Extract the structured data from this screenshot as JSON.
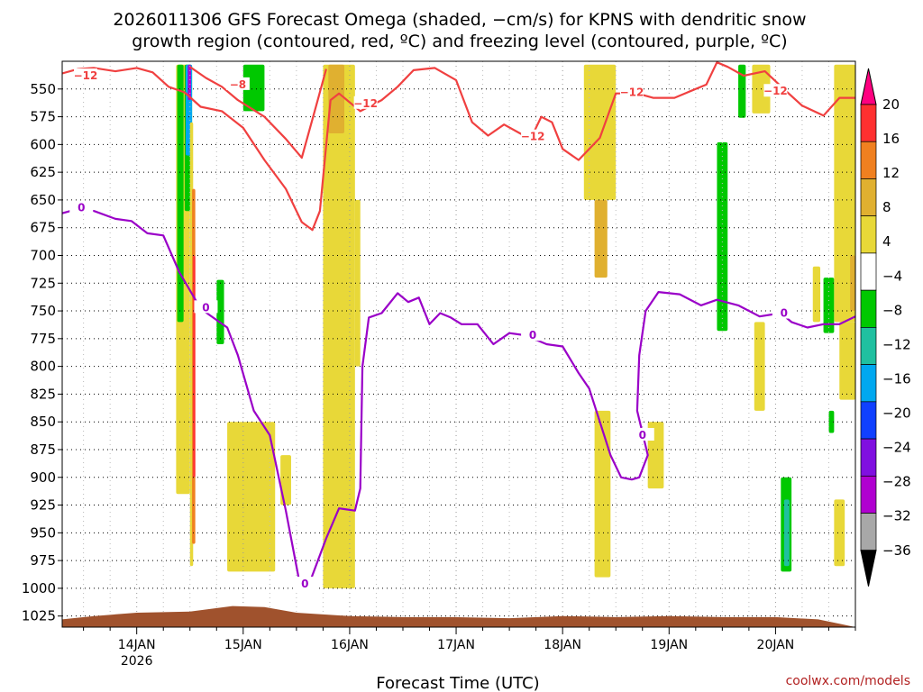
{
  "chart_data": {
    "type": "heatmap",
    "title_lines": [
      "2026011306 GFS Forecast Omega (shaded, −cm/s) for KPNS with dendritic snow",
      "growth region (contoured, red, ºC) and freezing level (contoured, purple, ºC)"
    ],
    "xlabel": "Forecast Time (UTC)",
    "credit": "coolwx.com/models",
    "y_unit": "hPa",
    "ylim": [
      1035,
      525
    ],
    "y_ticks": [
      "550",
      "575",
      "600",
      "625",
      "650",
      "675",
      "700",
      "725",
      "750",
      "775",
      "800",
      "825",
      "850",
      "875",
      "900",
      "925",
      "950",
      "975",
      "1000",
      "1025"
    ],
    "y_tick_values": [
      550,
      575,
      600,
      625,
      650,
      675,
      700,
      725,
      750,
      775,
      800,
      825,
      850,
      875,
      900,
      925,
      950,
      975,
      1000,
      1025
    ],
    "x_day_range": [
      13.3,
      20.75
    ],
    "x_ticks": [
      {
        "day": 14,
        "label": "14JAN",
        "sub": "2026"
      },
      {
        "day": 15,
        "label": "15JAN",
        "sub": ""
      },
      {
        "day": 16,
        "label": "16JAN",
        "sub": ""
      },
      {
        "day": 17,
        "label": "17JAN",
        "sub": ""
      },
      {
        "day": 18,
        "label": "18JAN",
        "sub": ""
      },
      {
        "day": 19,
        "label": "19JAN",
        "sub": ""
      },
      {
        "day": 20,
        "label": "20JAN",
        "sub": ""
      }
    ],
    "colorbar": {
      "levels": [
        "20",
        "16",
        "12",
        "8",
        "4",
        "−4",
        "−8",
        "−12",
        "−16",
        "−20",
        "−24",
        "−28",
        "−32",
        "−36"
      ],
      "colors": [
        "#ff0080",
        "#ff3030",
        "#f08020",
        "#e0b030",
        "#e8d838",
        "#ffffff",
        "#00c800",
        "#20c0a0",
        "#00a8f0",
        "#1040ff",
        "#8010e0",
        "#b000d0",
        "#a8a8a8",
        "#000000"
      ]
    },
    "series": [
      {
        "name": "dendritic snow growth region (−12 ºC)",
        "color": "#f04040",
        "points": [
          [
            13.3,
            536
          ],
          [
            13.45,
            532
          ],
          [
            13.6,
            531
          ],
          [
            13.8,
            534
          ],
          [
            14.0,
            531
          ],
          [
            14.15,
            535
          ],
          [
            14.3,
            548
          ],
          [
            14.45,
            553
          ],
          [
            14.6,
            566
          ],
          [
            14.8,
            570
          ],
          [
            15.0,
            585
          ],
          [
            15.2,
            614
          ],
          [
            15.4,
            640
          ],
          [
            15.55,
            670
          ],
          [
            15.65,
            677
          ],
          [
            15.72,
            660
          ],
          [
            15.82,
            560
          ],
          [
            15.9,
            554
          ],
          [
            16.1,
            570
          ],
          [
            16.3,
            560
          ],
          [
            16.45,
            548
          ],
          [
            16.6,
            533
          ],
          [
            16.8,
            531
          ],
          [
            17.0,
            542
          ],
          [
            17.15,
            580
          ],
          [
            17.3,
            592
          ],
          [
            17.45,
            582
          ],
          [
            17.6,
            590
          ],
          [
            17.7,
            595
          ],
          [
            17.8,
            575
          ],
          [
            17.9,
            580
          ],
          [
            18.0,
            604
          ],
          [
            18.15,
            614
          ],
          [
            18.35,
            594
          ],
          [
            18.5,
            554
          ],
          [
            18.7,
            554
          ],
          [
            18.85,
            558
          ],
          [
            19.05,
            558
          ],
          [
            19.2,
            552
          ],
          [
            19.35,
            546
          ],
          [
            19.45,
            526
          ],
          [
            19.55,
            530
          ],
          [
            19.7,
            538
          ],
          [
            19.9,
            534
          ],
          [
            20.1,
            552
          ],
          [
            20.25,
            565
          ],
          [
            20.45,
            574
          ],
          [
            20.6,
            558
          ],
          [
            20.75,
            558
          ]
        ],
        "labels": [
          {
            "day": 13.52,
            "p": 538,
            "text": "−12"
          },
          {
            "day": 16.15,
            "p": 563,
            "text": "−12"
          },
          {
            "day": 17.72,
            "p": 593,
            "text": "−12"
          },
          {
            "day": 18.65,
            "p": 553,
            "text": "−12"
          },
          {
            "day": 20.0,
            "p": 552,
            "text": "−12"
          }
        ]
      },
      {
        "name": "dendritic snow growth region (−8 ºC)",
        "color": "#f04040",
        "points": [
          [
            14.5,
            530
          ],
          [
            14.65,
            540
          ],
          [
            14.8,
            548
          ],
          [
            14.95,
            560
          ],
          [
            15.2,
            575
          ],
          [
            15.4,
            595
          ],
          [
            15.55,
            612
          ],
          [
            15.7,
            560
          ],
          [
            15.78,
            532
          ]
        ],
        "labels": [
          {
            "day": 14.95,
            "p": 546,
            "text": "−8"
          }
        ]
      },
      {
        "name": "freezing level (0 ºC)",
        "color": "#9a00c8",
        "points": [
          [
            13.3,
            662
          ],
          [
            13.45,
            658
          ],
          [
            13.6,
            660
          ],
          [
            13.8,
            667
          ],
          [
            13.95,
            669
          ],
          [
            14.1,
            680
          ],
          [
            14.25,
            682
          ],
          [
            14.4,
            715
          ],
          [
            14.6,
            748
          ],
          [
            14.85,
            765
          ],
          [
            14.95,
            790
          ],
          [
            15.1,
            840
          ],
          [
            15.25,
            862
          ],
          [
            15.4,
            930
          ],
          [
            15.52,
            990
          ],
          [
            15.62,
            996
          ],
          [
            15.78,
            955
          ],
          [
            15.9,
            928
          ],
          [
            16.05,
            930
          ],
          [
            16.1,
            910
          ],
          [
            16.12,
            800
          ],
          [
            16.18,
            756
          ],
          [
            16.3,
            752
          ],
          [
            16.45,
            734
          ],
          [
            16.55,
            742
          ],
          [
            16.65,
            738
          ],
          [
            16.75,
            762
          ],
          [
            16.85,
            752
          ],
          [
            16.95,
            756
          ],
          [
            17.05,
            762
          ],
          [
            17.2,
            762
          ],
          [
            17.35,
            780
          ],
          [
            17.5,
            770
          ],
          [
            17.65,
            772
          ],
          [
            17.85,
            780
          ],
          [
            18.0,
            782
          ],
          [
            18.15,
            806
          ],
          [
            18.25,
            820
          ],
          [
            18.35,
            850
          ],
          [
            18.45,
            880
          ],
          [
            18.55,
            900
          ],
          [
            18.65,
            902
          ],
          [
            18.72,
            900
          ],
          [
            18.8,
            880
          ],
          [
            18.7,
            840
          ],
          [
            18.72,
            790
          ],
          [
            18.78,
            750
          ],
          [
            18.9,
            733
          ],
          [
            19.1,
            735
          ],
          [
            19.3,
            745
          ],
          [
            19.45,
            740
          ],
          [
            19.65,
            745
          ],
          [
            19.85,
            755
          ],
          [
            20.05,
            752
          ],
          [
            20.15,
            760
          ],
          [
            20.3,
            765
          ],
          [
            20.45,
            762
          ],
          [
            20.6,
            762
          ],
          [
            20.75,
            755
          ]
        ],
        "labels": [
          {
            "day": 13.48,
            "p": 657,
            "text": "0"
          },
          {
            "day": 14.65,
            "p": 747,
            "text": "0"
          },
          {
            "day": 15.58,
            "p": 996,
            "text": "0"
          },
          {
            "day": 17.72,
            "p": 772,
            "text": "0"
          },
          {
            "day": 18.75,
            "p": 862,
            "text": "0"
          },
          {
            "day": 20.08,
            "p": 752,
            "text": "0"
          }
        ]
      }
    ],
    "shaded_regions": [
      {
        "d0": 14.37,
        "d1": 14.5,
        "p0": 528,
        "p1": 915,
        "c": 4
      },
      {
        "d0": 14.38,
        "d1": 14.44,
        "p0": 528,
        "p1": 760,
        "c": 6
      },
      {
        "d0": 14.45,
        "d1": 14.52,
        "p0": 528,
        "p1": 660,
        "c": 6
      },
      {
        "d0": 14.46,
        "d1": 14.52,
        "p0": 528,
        "p1": 610,
        "c": 8
      },
      {
        "d0": 14.48,
        "d1": 14.51,
        "p0": 528,
        "p1": 560,
        "c": 11
      },
      {
        "d0": 14.5,
        "d1": 14.53,
        "p0": 580,
        "p1": 980,
        "c": 4
      },
      {
        "d0": 14.52,
        "d1": 14.55,
        "p0": 640,
        "p1": 960,
        "c": 2
      },
      {
        "d0": 14.53,
        "d1": 14.55,
        "p0": 700,
        "p1": 900,
        "c": 1
      },
      {
        "d0": 14.75,
        "d1": 14.82,
        "p0": 722,
        "p1": 780,
        "c": 6
      },
      {
        "d0": 15.0,
        "d1": 15.2,
        "p0": 528,
        "p1": 570,
        "c": 6
      },
      {
        "d0": 14.85,
        "d1": 15.3,
        "p0": 850,
        "p1": 985,
        "c": 4
      },
      {
        "d0": 15.35,
        "d1": 15.45,
        "p0": 880,
        "p1": 925,
        "c": 4
      },
      {
        "d0": 15.75,
        "d1": 16.05,
        "p0": 528,
        "p1": 1000,
        "c": 4
      },
      {
        "d0": 15.8,
        "d1": 15.95,
        "p0": 528,
        "p1": 590,
        "c": 3
      },
      {
        "d0": 16.05,
        "d1": 16.1,
        "p0": 650,
        "p1": 800,
        "c": 4
      },
      {
        "d0": 18.2,
        "d1": 18.5,
        "p0": 528,
        "p1": 650,
        "c": 4
      },
      {
        "d0": 18.3,
        "d1": 18.42,
        "p0": 650,
        "p1": 720,
        "c": 3
      },
      {
        "d0": 18.3,
        "d1": 18.45,
        "p0": 840,
        "p1": 990,
        "c": 4
      },
      {
        "d0": 18.8,
        "d1": 18.95,
        "p0": 850,
        "p1": 910,
        "c": 4
      },
      {
        "d0": 19.45,
        "d1": 19.55,
        "p0": 598,
        "p1": 768,
        "c": 6
      },
      {
        "d0": 19.65,
        "d1": 19.72,
        "p0": 528,
        "p1": 576,
        "c": 6
      },
      {
        "d0": 19.78,
        "d1": 19.95,
        "p0": 528,
        "p1": 572,
        "c": 4
      },
      {
        "d0": 19.8,
        "d1": 19.9,
        "p0": 760,
        "p1": 840,
        "c": 4
      },
      {
        "d0": 20.05,
        "d1": 20.15,
        "p0": 900,
        "p1": 985,
        "c": 6
      },
      {
        "d0": 20.08,
        "d1": 20.13,
        "p0": 920,
        "p1": 980,
        "c": 7
      },
      {
        "d0": 20.35,
        "d1": 20.42,
        "p0": 710,
        "p1": 760,
        "c": 4
      },
      {
        "d0": 20.45,
        "d1": 20.55,
        "p0": 720,
        "p1": 770,
        "c": 6
      },
      {
        "d0": 20.5,
        "d1": 20.55,
        "p0": 840,
        "p1": 860,
        "c": 6
      },
      {
        "d0": 20.55,
        "d1": 20.75,
        "p0": 528,
        "p1": 760,
        "c": 4
      },
      {
        "d0": 20.7,
        "d1": 20.75,
        "p0": 700,
        "p1": 750,
        "c": 3
      },
      {
        "d0": 20.6,
        "d1": 20.75,
        "p0": 760,
        "p1": 830,
        "c": 4
      },
      {
        "d0": 20.55,
        "d1": 20.65,
        "p0": 920,
        "p1": 980,
        "c": 4
      }
    ],
    "terrain": {
      "color": "#a0522d",
      "points": [
        [
          13.3,
          1028
        ],
        [
          13.6,
          1025
        ],
        [
          14.0,
          1022
        ],
        [
          14.5,
          1021
        ],
        [
          14.9,
          1016
        ],
        [
          15.2,
          1017
        ],
        [
          15.5,
          1022
        ],
        [
          16.0,
          1025
        ],
        [
          16.5,
          1026
        ],
        [
          17.0,
          1026
        ],
        [
          17.5,
          1027
        ],
        [
          18.0,
          1025
        ],
        [
          18.5,
          1026
        ],
        [
          19.0,
          1025
        ],
        [
          19.5,
          1026
        ],
        [
          20.0,
          1026
        ],
        [
          20.4,
          1028
        ],
        [
          20.6,
          1032
        ],
        [
          20.75,
          1035
        ]
      ]
    }
  }
}
